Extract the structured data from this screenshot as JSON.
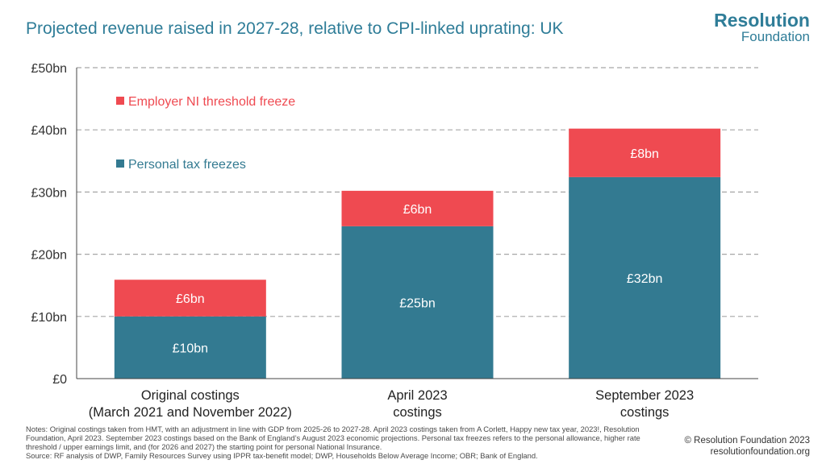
{
  "title": "Projected revenue raised in 2027-28, relative to CPI-linked uprating: UK",
  "logo": {
    "line1": "Resolution",
    "line2": "Foundation"
  },
  "notes": [
    "Notes: Original costings taken from HMT, with an adjustment in line with GDP from 2025-26 to 2027-28. April 2023 costings taken from A Corlett, Happy new tax year, 2023!, Resolution Foundation, April 2023. September 2023 costings based on the Bank of England’s August 2023 economic projections. Personal tax freezes refers to the personal allowance, higher rate threshold / upper earnings limit, and (for 2026 and 2027) the starting point for personal National Insurance.",
    "Source: RF analysis of DWP, Family Resources Survey using IPPR tax-benefit model; DWP, Households Below Average Income; OBR; Bank of England."
  ],
  "footer": {
    "copyright": "© Resolution Foundation 2023",
    "website": "resolutionfoundation.org"
  },
  "colors": {
    "personal": "#337a91",
    "employer": "#ef4a51",
    "title": "#2f7d98",
    "grid": "#a6a6a6"
  },
  "chart_data": {
    "type": "bar",
    "stacked": true,
    "categories": [
      [
        "Original costings",
        "(March 2021 and November 2022)"
      ],
      [
        "April 2023",
        "costings"
      ],
      [
        "September 2023",
        "costings"
      ]
    ],
    "series": [
      {
        "name": "Personal tax freezes",
        "color": "#337a91",
        "values": [
          10,
          24.5,
          32.4
        ],
        "labels": [
          "£10bn",
          "£25bn",
          "£32bn"
        ]
      },
      {
        "name": "Employer NI threshold freeze",
        "color": "#ef4a51",
        "values": [
          5.9,
          5.7,
          7.8
        ],
        "labels": [
          "£6bn",
          "£6bn",
          "£8bn"
        ]
      }
    ],
    "ylim": [
      0,
      50
    ],
    "yticks": [
      0,
      10,
      20,
      30,
      40,
      50
    ],
    "ytick_labels": [
      "£0",
      "£10bn",
      "£20bn",
      "£30bn",
      "£40bn",
      "£50bn"
    ],
    "grid": true,
    "legend": [
      {
        "label": "Employer NI threshold freeze",
        "color": "#ef4a51"
      },
      {
        "label": "Personal tax freezes",
        "color": "#337a91"
      }
    ]
  }
}
